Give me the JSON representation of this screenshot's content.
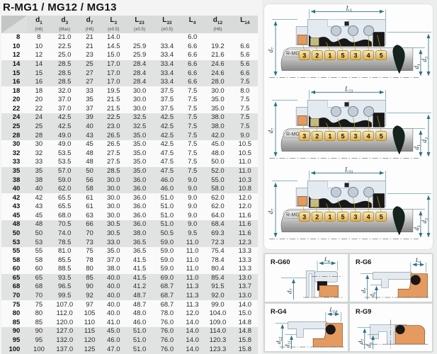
{
  "title": "R-MG1 / MG12 / MG13",
  "colors": {
    "accent_gold": "#e0b453",
    "seat_orange": "#e59a5f",
    "housing_blue": "#e3eaf0",
    "dimension_teal": "#2c7087",
    "band_gray": "#e1e3e3"
  },
  "table": {
    "columns": [
      {
        "base": "",
        "sub": "",
        "note": ""
      },
      {
        "base": "d",
        "sub": "1",
        "note": "(h6)"
      },
      {
        "base": "d",
        "sub": "3",
        "note": "(Max)"
      },
      {
        "base": "d",
        "sub": "7",
        "note": "(H8)"
      },
      {
        "base": "L",
        "sub": "3",
        "note": "(±0.5)"
      },
      {
        "base": "L",
        "sub": "23",
        "note": "(±0.5)"
      },
      {
        "base": "L",
        "sub": "33",
        "note": "(±0.5)"
      },
      {
        "base": "L",
        "sub": "4",
        "note": ""
      },
      {
        "base": "d",
        "sub": "12",
        "note": "(H8)"
      },
      {
        "base": "L",
        "sub": "14",
        "note": ""
      }
    ],
    "rows": [
      [
        "8",
        "8",
        "21.0",
        "21",
        "14.0",
        "",
        "",
        "6.0",
        "",
        ""
      ],
      [
        "10",
        "10",
        "22.5",
        "21",
        "14.5",
        "25.9",
        "33.4",
        "6.6",
        "19.2",
        "6.6"
      ],
      [
        "12",
        "12",
        "25.0",
        "23",
        "15.0",
        "25.9",
        "33.4",
        "6.6",
        "21.6",
        "5.6"
      ],
      [
        "14",
        "14",
        "28.5",
        "25",
        "17.0",
        "28.4",
        "33.4",
        "6.6",
        "24.6",
        "5.6"
      ],
      [
        "15",
        "15",
        "28.5",
        "27",
        "17.0",
        "28.4",
        "33.4",
        "6.6",
        "24.6",
        "6.6"
      ],
      [
        "16",
        "16",
        "28.5",
        "27",
        "17.0",
        "28.4",
        "33.4",
        "6.6",
        "28.0",
        "7.5"
      ],
      [
        "18",
        "18",
        "32.0",
        "33",
        "19.5",
        "30.0",
        "37.5",
        "7.5",
        "30.0",
        "8.0"
      ],
      [
        "20",
        "20",
        "37.0",
        "35",
        "21.5",
        "30.0",
        "37.5",
        "7.5",
        "35.0",
        "7.5"
      ],
      [
        "22",
        "22",
        "37.0",
        "37",
        "21.5",
        "30.0",
        "37.5",
        "7.5",
        "35.0",
        "7.5"
      ],
      [
        "24",
        "24",
        "42.5",
        "39",
        "22.5",
        "32.5",
        "42.5",
        "7.5",
        "38.0",
        "7.5"
      ],
      [
        "25",
        "25",
        "42.5",
        "40",
        "23.0",
        "32.5",
        "42.5",
        "7.5",
        "38.0",
        "7.5"
      ],
      [
        "28",
        "28",
        "49.0",
        "43",
        "26.5",
        "35.0",
        "42.5",
        "7.5",
        "42.0",
        "9.0"
      ],
      [
        "30",
        "30",
        "49.0",
        "45",
        "26.5",
        "35.0",
        "42.5",
        "7.5",
        "45.0",
        "10.5"
      ],
      [
        "32",
        "32",
        "53.5",
        "48",
        "27.5",
        "35.0",
        "47.5",
        "7.5",
        "48.0",
        "10.5"
      ],
      [
        "33",
        "33",
        "53.5",
        "48",
        "27.5",
        "35.0",
        "47.5",
        "7.5",
        "50.0",
        "11.0"
      ],
      [
        "35",
        "35",
        "57.0",
        "50",
        "28.5",
        "35.0",
        "47.5",
        "7.5",
        "52.0",
        "11.0"
      ],
      [
        "38",
        "38",
        "59.0",
        "56",
        "30.0",
        "36.0",
        "46.0",
        "9.0",
        "55.0",
        "10.3"
      ],
      [
        "40",
        "40",
        "62.0",
        "58",
        "30.0",
        "36.0",
        "46.0",
        "9.0",
        "58.0",
        "10.8"
      ],
      [
        "42",
        "42",
        "65.5",
        "61",
        "30.0",
        "36.0",
        "51.0",
        "9.0",
        "62.0",
        "12.0"
      ],
      [
        "43",
        "43",
        "65.5",
        "61",
        "30.0",
        "36.0",
        "51.0",
        "9.0",
        "62.0",
        "12.0"
      ],
      [
        "45",
        "45",
        "68.0",
        "63",
        "30.0",
        "36.0",
        "51.0",
        "9.0",
        "64.0",
        "11.6"
      ],
      [
        "48",
        "48",
        "70.5",
        "66",
        "30.5",
        "36.0",
        "51.0",
        "9.0",
        "68.4",
        "11.6"
      ],
      [
        "50",
        "50",
        "74.0",
        "70",
        "30.5",
        "38.0",
        "50.5",
        "9.5",
        "69.3",
        "11.6"
      ],
      [
        "53",
        "53",
        "78.5",
        "73",
        "33.0",
        "36.5",
        "59.0",
        "11.0",
        "72.3",
        "12.3"
      ],
      [
        "55",
        "55",
        "81.0",
        "75",
        "35.0",
        "36.5",
        "59.0",
        "11.0",
        "75.4",
        "13.3"
      ],
      [
        "58",
        "58",
        "85.5",
        "78",
        "37.0",
        "41.5",
        "59.0",
        "11.0",
        "78.4",
        "13.3"
      ],
      [
        "60",
        "60",
        "88.5",
        "80",
        "38.0",
        "41.5",
        "59.0",
        "11.0",
        "80.4",
        "13.3"
      ],
      [
        "65",
        "65",
        "93.5",
        "85",
        "40.0",
        "41.5",
        "69.0",
        "11.0",
        "85.4",
        "13.0"
      ],
      [
        "68",
        "68",
        "96.5",
        "90",
        "40.0",
        "41.2",
        "68.7",
        "11.3",
        "91.5",
        "13.7"
      ],
      [
        "70",
        "70",
        "99.5",
        "92",
        "40.0",
        "48.7",
        "68.7",
        "11.3",
        "92.0",
        "13.0"
      ],
      [
        "75",
        "75",
        "107.0",
        "97",
        "40.0",
        "48.7",
        "68.7",
        "11.3",
        "99.0",
        "14.0"
      ],
      [
        "80",
        "80",
        "112.0",
        "105",
        "40.0",
        "48.0",
        "78.0",
        "12.0",
        "104.0",
        "15.0"
      ],
      [
        "85",
        "85",
        "120.0",
        "110",
        "41.0",
        "46.0",
        "76.0",
        "14.0",
        "109.0",
        "14.8"
      ],
      [
        "90",
        "90",
        "127.0",
        "115",
        "45.0",
        "51.0",
        "76.0",
        "14.0",
        "114.0",
        "14.8"
      ],
      [
        "95",
        "95",
        "132.0",
        "120",
        "46.0",
        "51.0",
        "76.0",
        "14.0",
        "120.3",
        "15.8"
      ],
      [
        "100",
        "100",
        "137.0",
        "125",
        "47.0",
        "51.0",
        "76.0",
        "14.0",
        "123.3",
        "15.8"
      ]
    ]
  },
  "diagrams": [
    {
      "label": "R-MG1",
      "top": {
        "base": "L",
        "sub": "3"
      },
      "left": {
        "base": "d",
        "sub": "7"
      },
      "right_inner": {
        "base": "d",
        "sub": "1"
      },
      "right_outer": {
        "base": "d",
        "sub": "3"
      },
      "callouts": [
        "3",
        "2",
        "1",
        "5",
        "3",
        "4",
        "5"
      ]
    },
    {
      "label": "R-MG12",
      "top": {
        "base": "L",
        "sub": "23"
      },
      "left": {
        "base": "d",
        "sub": "7"
      },
      "right_inner": {
        "base": "d",
        "sub": "1"
      },
      "right_outer": {
        "base": "d",
        "sub": "3"
      },
      "callouts": [
        "3",
        "2",
        "1",
        "5",
        "3",
        "4",
        "5"
      ]
    },
    {
      "label": "R-MG13",
      "top": {
        "base": "L",
        "sub": "33"
      },
      "left": {
        "base": "d",
        "sub": "7"
      },
      "right_inner": {
        "base": "d",
        "sub": "1"
      },
      "right_outer": {
        "base": "d",
        "sub": "3"
      },
      "callouts": [
        "3",
        "2",
        "1",
        "5",
        "3",
        "4",
        "5"
      ]
    }
  ],
  "seats": [
    {
      "label": "R-G60",
      "top": {
        "base": "L",
        "sub": "4"
      },
      "dims": [
        {
          "base": "d",
          "sub": "7"
        }
      ]
    },
    {
      "label": "R-G6",
      "top": {
        "base": "L",
        "sub": "4"
      },
      "dims": [
        {
          "base": "d",
          "sub": "7"
        },
        {
          "base": "d",
          "sub": "6"
        }
      ]
    },
    {
      "label": "R-G4",
      "top": {
        "base": "L",
        "sub": "14"
      },
      "dims": [
        {
          "base": "d",
          "sub": "12"
        },
        {
          "base": "d",
          "sub": "11"
        }
      ]
    },
    {
      "label": "R-G9",
      "dims": [
        {
          "base": "d",
          "sub": "7"
        },
        {
          "base": "d",
          "sub": "6"
        }
      ]
    }
  ]
}
